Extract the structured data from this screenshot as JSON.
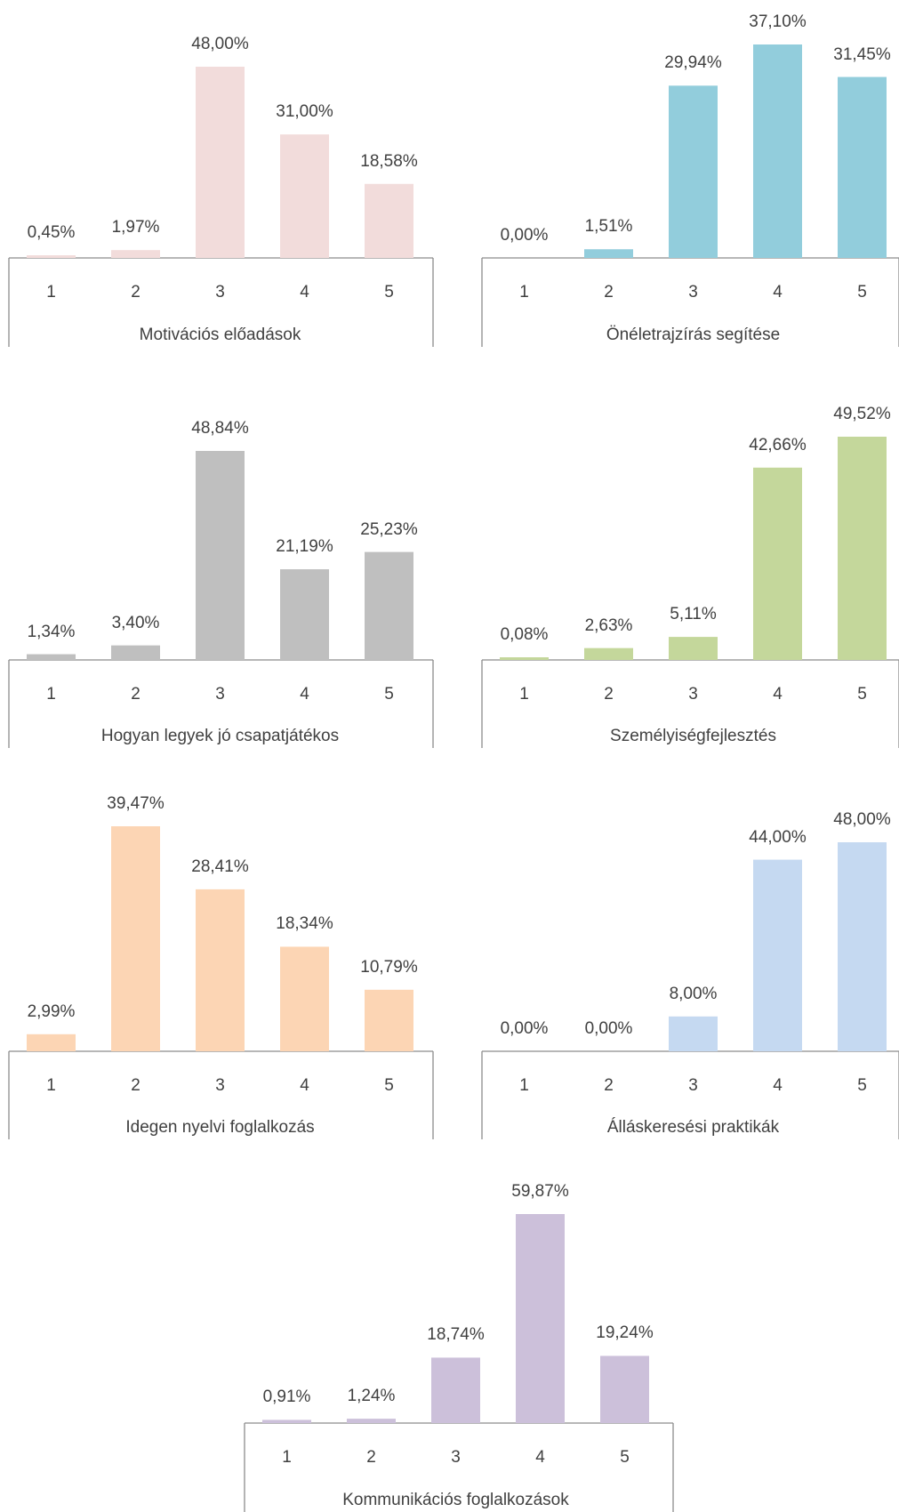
{
  "chart_data": [
    {
      "type": "bar",
      "title": "Motivációs előadások",
      "categories": [
        "1",
        "2",
        "3",
        "4",
        "5"
      ],
      "values": [
        0.45,
        1.97,
        48.0,
        31.0,
        18.58
      ],
      "labels": [
        "0,45%",
        "1,97%",
        "48,00%",
        "31,00%",
        "18,58%"
      ],
      "color": "#f2dcdb",
      "ylim": [
        0,
        48
      ]
    },
    {
      "type": "bar",
      "title": "Önéletrajzírás segítése",
      "categories": [
        "1",
        "2",
        "3",
        "4",
        "5"
      ],
      "values": [
        0.0,
        1.51,
        29.94,
        37.1,
        31.45
      ],
      "labels": [
        "0,00%",
        "1,51%",
        "29,94%",
        "37,10%",
        "31,45%"
      ],
      "color": "#92cddc",
      "ylim": [
        0,
        37.1
      ]
    },
    {
      "type": "bar",
      "title": "Hogyan legyek jó csapatjátékos",
      "categories": [
        "1",
        "2",
        "3",
        "4",
        "5"
      ],
      "values": [
        1.34,
        3.4,
        48.84,
        21.19,
        25.23
      ],
      "labels": [
        "1,34%",
        "3,40%",
        "48,84%",
        "21,19%",
        "25,23%"
      ],
      "color": "#bfbfbf",
      "ylim": [
        0,
        48.84
      ]
    },
    {
      "type": "bar",
      "title": "Személyiségfejlesztés",
      "categories": [
        "1",
        "2",
        "3",
        "4",
        "5"
      ],
      "values": [
        0.08,
        2.63,
        5.11,
        42.66,
        49.52
      ],
      "labels": [
        "0,08%",
        "2,63%",
        "5,11%",
        "42,66%",
        "49,52%"
      ],
      "color": "#c4d79b",
      "ylim": [
        0,
        49.52
      ]
    },
    {
      "type": "bar",
      "title": "Idegen nyelvi foglalkozás",
      "categories": [
        "1",
        "2",
        "3",
        "4",
        "5"
      ],
      "values": [
        2.99,
        39.47,
        28.41,
        18.34,
        10.79
      ],
      "labels": [
        "2,99%",
        "39,47%",
        "28,41%",
        "18,34%",
        "10,79%"
      ],
      "color": "#fcd5b4",
      "ylim": [
        0,
        39.47
      ]
    },
    {
      "type": "bar",
      "title": "Álláskeresési praktikák",
      "categories": [
        "1",
        "2",
        "3",
        "4",
        "5"
      ],
      "values": [
        0.0,
        0.0,
        8.0,
        44.0,
        48.0
      ],
      "labels": [
        "0,00%",
        "0,00%",
        "8,00%",
        "44,00%",
        "48,00%"
      ],
      "color": "#c5d9f1",
      "ylim": [
        0,
        48
      ]
    },
    {
      "type": "bar",
      "title": "Kommunikációs foglalkozások",
      "categories": [
        "1",
        "2",
        "3",
        "4",
        "5"
      ],
      "values": [
        0.91,
        1.24,
        18.74,
        59.87,
        19.24
      ],
      "labels": [
        "0,91%",
        "1,24%",
        "18,74%",
        "59,87%",
        "19,24%"
      ],
      "color": "#ccc0da",
      "ylim": [
        0,
        59.87
      ]
    }
  ]
}
